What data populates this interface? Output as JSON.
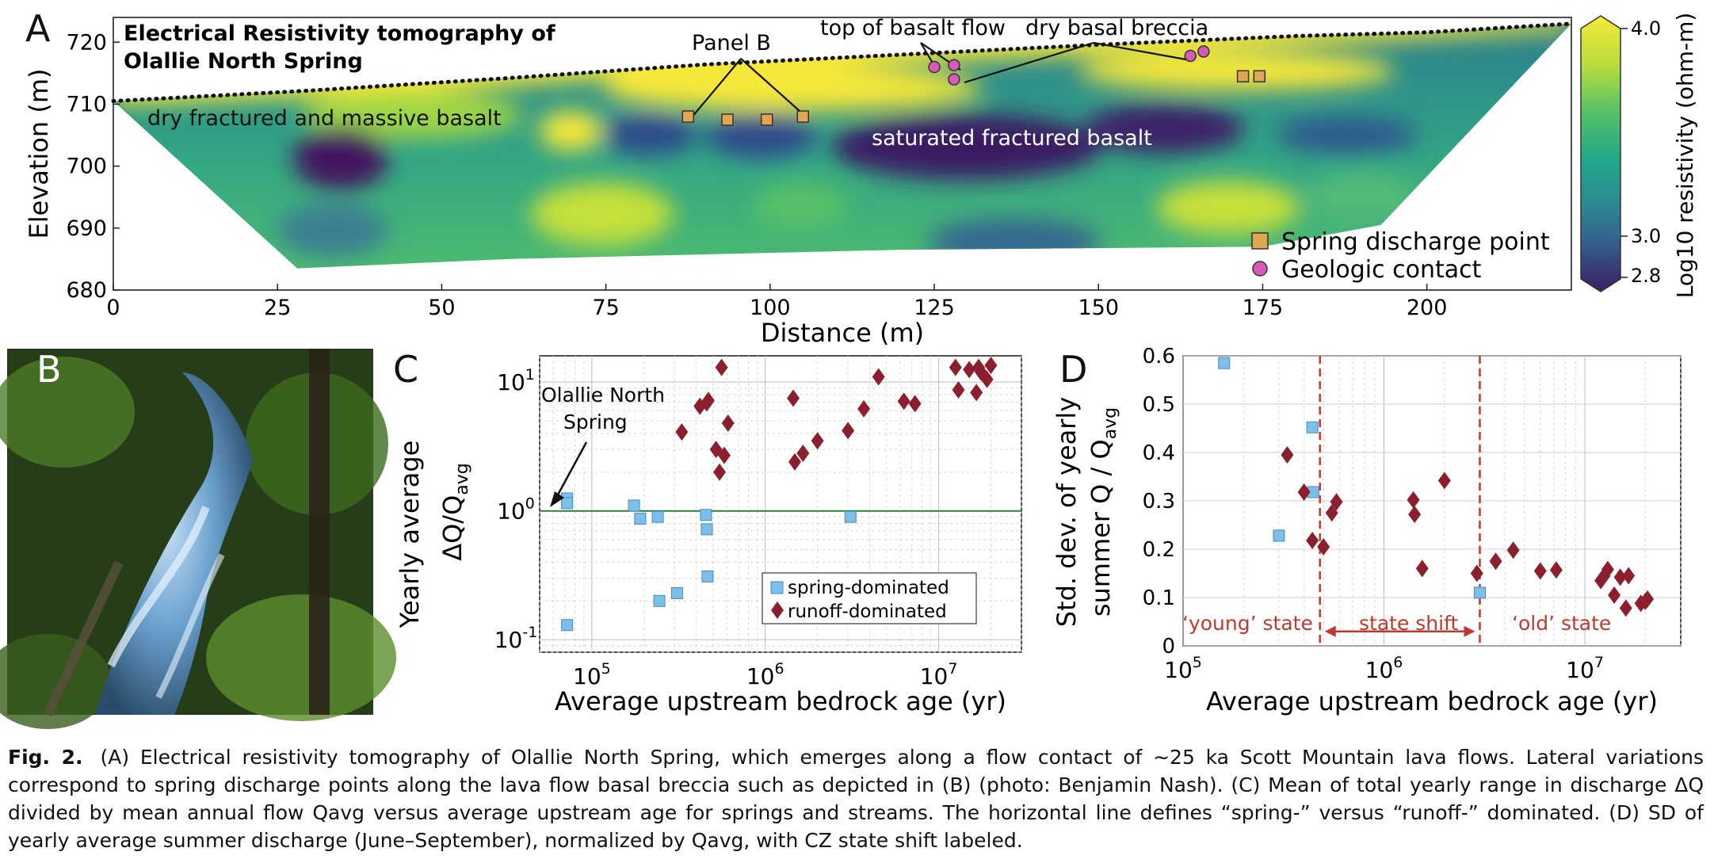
{
  "panels": {
    "a": "A",
    "b": "B",
    "c": "C",
    "d": "D"
  },
  "panel_a": {
    "title_line1": "Electrical Resistivity tomography of",
    "title_line2": "Olallie North Spring",
    "annotations": {
      "panel_b": "Panel B",
      "top_basalt": "top of basalt flow",
      "breccia": "dry basal breccia",
      "dry_basalt": "dry fractured and massive basalt",
      "saturated": "saturated fractured basalt"
    },
    "legend": {
      "spring": "Spring discharge point",
      "contact": "Geologic contact"
    },
    "colorbar": {
      "label": "Log10 resistivity (ohm-m)",
      "ticks": [
        "4.0",
        "3.0",
        "2.8"
      ]
    },
    "colors": {
      "high": "#f5e93a",
      "mid": "#3fb08a",
      "low": "#3b1f63",
      "spring": "#e0a651",
      "contact": "#d65ab7"
    }
  },
  "panel_c": {
    "olallie_label_1": "Olallie North",
    "olallie_label_2": "Spring",
    "legend": {
      "spring": "spring-dominated",
      "runoff": "runoff-dominated"
    },
    "colors": {
      "spring": "#7bbfea",
      "runoff": "#8c1f2d",
      "threshold": "#2e7d3a"
    }
  },
  "panel_d": {
    "young": "‘young’ state",
    "shift": "state shift",
    "old": "‘old’ state",
    "shift_color": "#c0392b"
  },
  "chart_data": [
    {
      "type": "heatmap",
      "title": "Electrical Resistivity tomography of Olallie North Spring",
      "xlabel": "Distance (m)",
      "ylabel": "Elevation (m)",
      "xlim": [
        0,
        222
      ],
      "ylim": [
        680,
        724
      ],
      "xticks": [
        "0",
        "25",
        "50",
        "75",
        "100",
        "125",
        "150",
        "175",
        "200"
      ],
      "yticks": [
        "680",
        "690",
        "700",
        "710",
        "720"
      ],
      "surface": [
        [
          0,
          710.5
        ],
        [
          30,
          712.2
        ],
        [
          60,
          714.2
        ],
        [
          90,
          716.4
        ],
        [
          120,
          718
        ],
        [
          150,
          719.6
        ],
        [
          180,
          721
        ],
        [
          200,
          721.6
        ],
        [
          222,
          723
        ]
      ],
      "spring_discharge_points": [
        [
          87.5,
          708
        ],
        [
          93.5,
          707.5
        ],
        [
          99.5,
          707.5
        ],
        [
          105,
          708
        ],
        [
          172,
          714.5
        ],
        [
          174.5,
          714.5
        ]
      ],
      "geologic_contacts": [
        [
          125,
          716
        ],
        [
          128,
          716.3
        ],
        [
          128,
          714
        ],
        [
          164,
          717.8
        ],
        [
          166,
          718.5
        ]
      ],
      "colorbar": {
        "label": "Log10 resistivity (ohm-m)",
        "range": [
          2.8,
          4.0
        ]
      }
    },
    {
      "type": "scatter",
      "xlabel": "Average upstream bedrock age (yr)",
      "ylabel": "Yearly average",
      "ylabel2": "ΔQ/Q",
      "ylabel2_sub": "avg",
      "xscale": "log",
      "yscale": "log",
      "xlim": [
        50000,
        30000000
      ],
      "ylim": [
        0.08,
        16
      ],
      "xticks": [
        {
          "b": "10",
          "e": "5"
        },
        {
          "b": "10",
          "e": "6"
        },
        {
          "b": "10",
          "e": "7"
        }
      ],
      "yticks": [
        {
          "b": "10",
          "e": "1"
        },
        {
          "b": "10",
          "e": "0"
        },
        {
          "b": "10",
          "e": "-1"
        }
      ],
      "threshold": 1.0,
      "series": [
        {
          "name": "spring-dominated",
          "x": [
            72000,
            72000,
            72000,
            175000,
            190000,
            240000,
            245000,
            310000,
            455000,
            460000,
            465000,
            3100000
          ],
          "y": [
            1.25,
            1.15,
            0.13,
            1.1,
            0.87,
            0.9,
            0.2,
            0.23,
            0.93,
            0.72,
            0.31,
            0.9
          ]
        },
        {
          "name": "runoff-dominated",
          "x": [
            330000,
            420000,
            460000,
            470000,
            520000,
            545000,
            560000,
            580000,
            610000,
            1450000,
            1480000,
            1650000,
            2000000,
            3000000,
            3700000,
            4500000,
            6300000,
            7300000,
            12500000,
            13000000,
            15000000,
            16500000,
            17000000,
            17500000,
            19000000,
            20000000
          ],
          "y": [
            4.1,
            6.5,
            6.9,
            7.2,
            3.0,
            2.0,
            13.0,
            2.7,
            4.8,
            7.5,
            2.4,
            2.8,
            3.5,
            4.2,
            6.2,
            11.0,
            7.1,
            6.8,
            13.0,
            8.7,
            12.5,
            8.3,
            13.0,
            12.0,
            10.5,
            13.5
          ]
        }
      ]
    },
    {
      "type": "scatter",
      "xlabel": "Average upstream bedrock age (yr)",
      "ylabel": "Std. dev. of yearly",
      "ylabel2": "summer Q / Q",
      "ylabel2_sub": "avg",
      "xscale": "log",
      "xlim": [
        100000,
        30000000
      ],
      "ylim": [
        0,
        0.6
      ],
      "xticks": [
        {
          "b": "10",
          "e": "5"
        },
        {
          "b": "10",
          "e": "6"
        },
        {
          "b": "10",
          "e": "7"
        }
      ],
      "yticks": [
        "0",
        "0.1",
        "0.2",
        "0.3",
        "0.4",
        "0.5",
        "0.6"
      ],
      "state_shift_bounds": [
        480000,
        3000000
      ],
      "series": [
        {
          "name": "spring-dominated",
          "x": [
            160000,
            300000,
            440000,
            445000,
            3000000
          ],
          "y": [
            0.585,
            0.228,
            0.452,
            0.318,
            0.11
          ]
        },
        {
          "name": "runoff-dominated",
          "x": [
            330000,
            400000,
            440000,
            500000,
            550000,
            580000,
            1400000,
            1420000,
            1550000,
            2000000,
            2900000,
            3600000,
            4400000,
            6000000,
            7200000,
            12000000,
            12500000,
            13000000,
            14000000,
            15000000,
            16000000,
            16500000,
            19000000,
            20000000,
            20500000
          ],
          "y": [
            0.395,
            0.318,
            0.218,
            0.205,
            0.275,
            0.298,
            0.302,
            0.272,
            0.16,
            0.342,
            0.15,
            0.175,
            0.198,
            0.155,
            0.157,
            0.135,
            0.145,
            0.158,
            0.105,
            0.142,
            0.078,
            0.145,
            0.088,
            0.092,
            0.097
          ]
        }
      ]
    }
  ],
  "caption": {
    "label": "Fig. 2.",
    "text": "(A) Electrical resistivity tomography of Olallie North Spring, which emerges along a flow contact of ∼25 ka Scott Mountain lava flows. Lateral variations correspond to spring discharge points along the lava flow basal breccia such as depicted in (B) (photo: Benjamin Nash). (C) Mean of total yearly range in discharge ΔQ divided by mean annual flow Qavg versus average upstream age for springs and streams. The horizontal line defines “spring-” versus “runoff-” dominated. (D) SD of yearly average summer discharge (June–September), normalized by Qavg, with CZ state shift labeled."
  }
}
